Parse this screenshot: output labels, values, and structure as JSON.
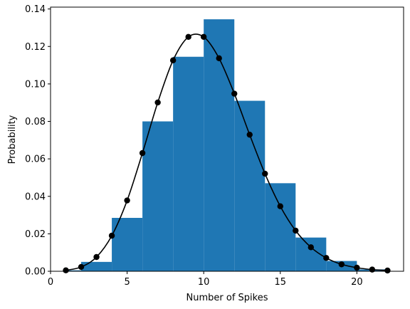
{
  "chart_data": {
    "type": "bar",
    "xlabel": "Number of Spikes",
    "ylabel": "Probability",
    "xlim": [
      0.0,
      23.05
    ],
    "ylim": [
      0,
      0.141
    ],
    "xticks": [
      0,
      5,
      10,
      15,
      20
    ],
    "xtick_labels": [
      "0",
      "5",
      "10",
      "15",
      "20"
    ],
    "yticks": [
      0.0,
      0.02,
      0.04,
      0.06,
      0.08,
      0.1,
      0.12,
      0.14
    ],
    "ytick_labels": [
      "0.00",
      "0.02",
      "0.04",
      "0.06",
      "0.08",
      "0.10",
      "0.12",
      "0.14"
    ],
    "grid": false,
    "histogram": {
      "bin_edges": [
        1,
        2,
        4,
        6,
        8,
        10,
        12,
        14,
        16,
        18,
        20,
        22
      ],
      "values": [
        0.0005,
        0.005,
        0.0285,
        0.08,
        0.1145,
        0.1345,
        0.091,
        0.047,
        0.018,
        0.0055,
        0.001
      ],
      "color": "#1f77b4"
    },
    "pmf_points": {
      "x": [
        1,
        2,
        3,
        4,
        5,
        6,
        7,
        8,
        9,
        10,
        11,
        12,
        13,
        14,
        15,
        16,
        17,
        18,
        19,
        20,
        21,
        22
      ],
      "y": [
        0.0005,
        0.0023,
        0.0076,
        0.019,
        0.0378,
        0.0631,
        0.0901,
        0.1126,
        0.1251,
        0.1251,
        0.1137,
        0.0948,
        0.0729,
        0.0521,
        0.0347,
        0.0217,
        0.0128,
        0.0071,
        0.0037,
        0.0019,
        0.0009,
        0.0004
      ],
      "color": "#000000"
    }
  }
}
